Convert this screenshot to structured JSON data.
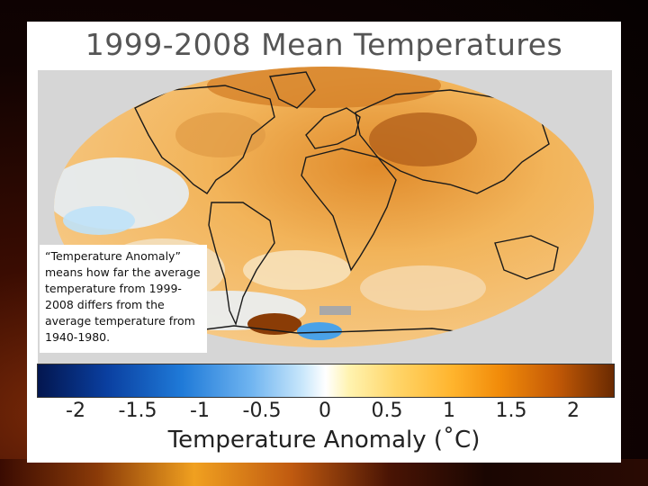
{
  "slide": {
    "title": "1999-2008 Mean Temperatures",
    "callout": "“Temperature Anomaly” means how far the average temperature from 1999-2008 differs from the average temperature from 1940-1980."
  },
  "legend": {
    "ticks": [
      "-2",
      "-1.5",
      "-1",
      "-0.5",
      "0",
      "0.5",
      "1",
      "1.5",
      "2"
    ],
    "title": "Temperature Anomaly (˚C)",
    "range": [
      -2.3,
      2.3
    ],
    "colors": {
      "low": "#03164f",
      "mid": "#ffffff",
      "high": "#6a2a02"
    }
  }
}
